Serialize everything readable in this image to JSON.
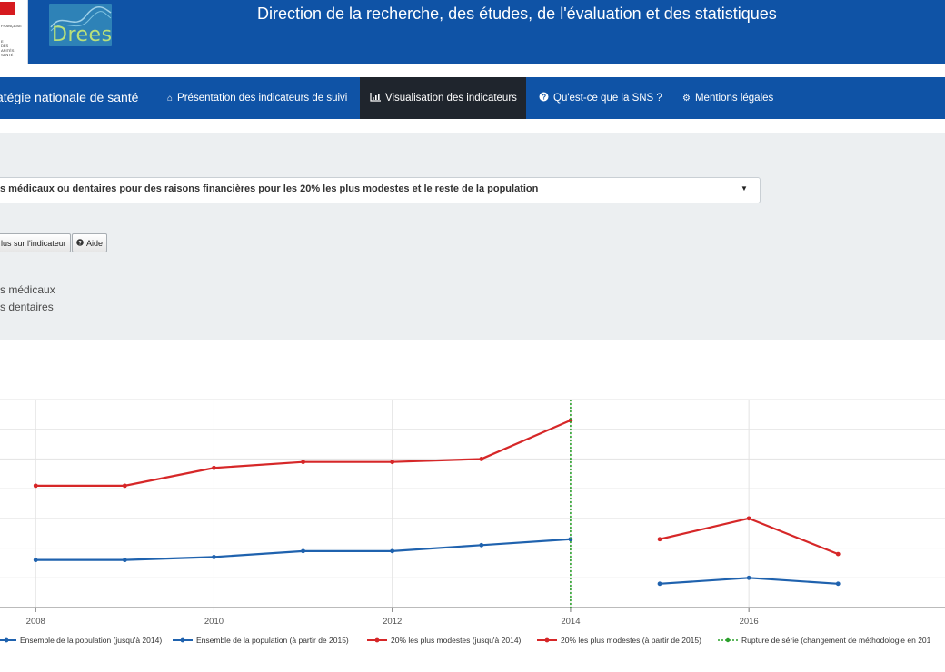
{
  "header": {
    "title": "Direction de la recherche, des études, de l'évaluation et des statistiques",
    "gov_logo_text": [
      "FRANÇAISE",
      "E",
      "DES",
      "ARITÉS",
      "SANTÉ"
    ],
    "drees_logo_text": "Drees"
  },
  "nav": {
    "brand": "atégie nationale de santé",
    "items": [
      {
        "label": "Présentation des indicateurs de suivi",
        "icon": "home-icon"
      },
      {
        "label": "Visualisation des indicateurs",
        "icon": "bar-chart-icon",
        "active": true
      },
      {
        "label": "Qu'est-ce que la SNS ?",
        "icon": "question-circle-icon"
      },
      {
        "label": "Mentions légales",
        "icon": "gears-icon"
      }
    ]
  },
  "panel": {
    "select_value": "s médicaux ou dentaires pour des raisons financières pour les 20% les plus modestes et le reste de la population",
    "btn_more": "lus sur l'indicateur",
    "btn_help": "Aide",
    "options": [
      "s médicaux",
      "s dentaires"
    ]
  },
  "colors": {
    "header_blue": "#0f53a6",
    "series_blue": "#1f62ae",
    "series_red": "#d62728",
    "break_green": "#2ca02c"
  },
  "chart_data": {
    "type": "line",
    "x_ticks": [
      "2008",
      "2010",
      "2012",
      "2014",
      "2016"
    ],
    "xlim": [
      2007.6,
      2018.2
    ],
    "ylim": [
      0,
      7
    ],
    "grid": true,
    "series": [
      {
        "name": "Ensemble de la population (jusqu'à 2014)",
        "color": "#1f62ae",
        "x": [
          2008,
          2009,
          2010,
          2011,
          2012,
          2013,
          2014
        ],
        "y": [
          1.6,
          1.6,
          1.7,
          1.9,
          1.9,
          2.1,
          2.3
        ]
      },
      {
        "name": "Ensemble de la population (à partir de 2015)",
        "color": "#1f62ae",
        "x": [
          2015,
          2016,
          2017
        ],
        "y": [
          0.8,
          1.0,
          0.8
        ]
      },
      {
        "name": "20% les plus modestes (jusqu'à 2014)",
        "color": "#d62728",
        "x": [
          2008,
          2009,
          2010,
          2011,
          2012,
          2013,
          2014
        ],
        "y": [
          4.1,
          4.1,
          4.7,
          4.9,
          4.9,
          5.0,
          6.3
        ]
      },
      {
        "name": "20% les plus modestes (à partir de 2015)",
        "color": "#d62728",
        "x": [
          2015,
          2016,
          2017
        ],
        "y": [
          2.3,
          3.0,
          1.8
        ]
      }
    ],
    "break_line": {
      "name": "Rupture de série (changement de méthodologie en 201",
      "x": 2014,
      "color": "#2ca02c"
    }
  }
}
